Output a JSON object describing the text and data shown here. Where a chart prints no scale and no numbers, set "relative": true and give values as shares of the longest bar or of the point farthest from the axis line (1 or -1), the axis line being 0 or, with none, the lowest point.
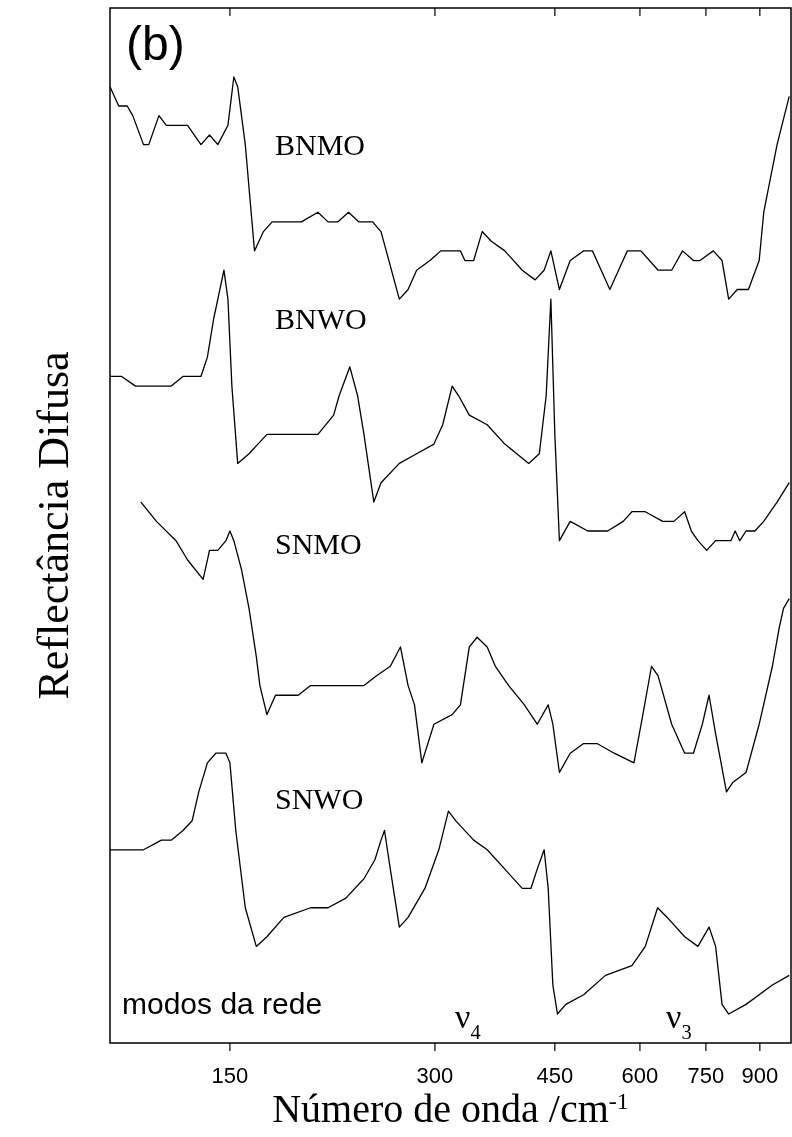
{
  "chart_data": {
    "type": "line",
    "relative": true,
    "log": "x",
    "xlabel": "Número de onda /cm$^{-1}$",
    "ylabel": "Reflectância Difusa",
    "xlim": [
      100,
      1000
    ],
    "xticks": [
      150,
      300,
      450,
      600,
      750,
      900
    ],
    "annotations": [
      "(b)",
      "modos da rede",
      "ν$_{4}$",
      "ν$_{3}$"
    ],
    "series": [
      {
        "name": "BNMO",
        "color": "#000000",
        "x": [
          100,
          103,
          106,
          108,
          112,
          114,
          118,
          121,
          125,
          130,
          136,
          140,
          144,
          149,
          152,
          154,
          158,
          163,
          168,
          173,
          180,
          191,
          202,
          209,
          216,
          224,
          232,
          243,
          250,
          266,
          274,
          282,
          295,
          306,
          318,
          327,
          332,
          342,
          352,
          363,
          380,
          403,
          421,
          434,
          444,
          457,
          474,
          496,
          511,
          542,
          575,
          602,
          638,
          668,
          693,
          719,
          735,
          769,
          792,
          810,
          834,
          866,
          898,
          912,
          954,
          994
        ],
        "values": [
          0.99,
          0.97,
          0.97,
          0.96,
          0.93,
          0.93,
          0.96,
          0.95,
          0.95,
          0.95,
          0.93,
          0.94,
          0.93,
          0.95,
          1.0,
          0.99,
          0.93,
          0.82,
          0.84,
          0.85,
          0.85,
          0.85,
          0.86,
          0.85,
          0.85,
          0.86,
          0.85,
          0.85,
          0.84,
          0.77,
          0.78,
          0.8,
          0.81,
          0.82,
          0.82,
          0.82,
          0.81,
          0.81,
          0.84,
          0.83,
          0.82,
          0.8,
          0.79,
          0.8,
          0.82,
          0.78,
          0.81,
          0.82,
          0.82,
          0.78,
          0.82,
          0.82,
          0.8,
          0.8,
          0.82,
          0.81,
          0.81,
          0.82,
          0.81,
          0.77,
          0.78,
          0.78,
          0.81,
          0.86,
          0.93,
          0.98
        ]
      },
      {
        "name": "BNWO",
        "color": "#000000",
        "x": [
          100,
          104,
          109,
          116,
          119,
          123,
          128,
          136,
          139,
          142,
          144,
          147,
          149,
          151,
          154,
          160,
          170,
          178,
          191,
          202,
          213,
          217,
          225,
          231,
          236,
          244,
          250,
          266,
          282,
          299,
          308,
          318,
          325,
          337,
          358,
          380,
          412,
          427,
          437,
          444,
          450,
          457,
          474,
          503,
          538,
          567,
          584,
          611,
          648,
          673,
          698,
          714,
          730,
          752,
          775,
          798,
          816,
          828,
          841,
          859,
          885,
          912,
          954,
          994
        ],
        "values": [
          0.69,
          0.69,
          0.68,
          0.68,
          0.68,
          0.68,
          0.69,
          0.69,
          0.71,
          0.75,
          0.77,
          0.8,
          0.77,
          0.68,
          0.6,
          0.61,
          0.63,
          0.63,
          0.63,
          0.63,
          0.65,
          0.67,
          0.7,
          0.67,
          0.63,
          0.56,
          0.58,
          0.6,
          0.61,
          0.62,
          0.64,
          0.68,
          0.67,
          0.65,
          0.64,
          0.62,
          0.6,
          0.61,
          0.67,
          0.77,
          0.63,
          0.52,
          0.54,
          0.53,
          0.53,
          0.54,
          0.55,
          0.55,
          0.54,
          0.54,
          0.55,
          0.53,
          0.52,
          0.51,
          0.52,
          0.52,
          0.52,
          0.53,
          0.52,
          0.53,
          0.53,
          0.54,
          0.56,
          0.58
        ]
      },
      {
        "name": "SNMO",
        "color": "#000000",
        "x": [
          111,
          117,
          125,
          130,
          137,
          140,
          144,
          148,
          150,
          152,
          156,
          160,
          164,
          166,
          170,
          175,
          180,
          189,
          197,
          209,
          222,
          236,
          246,
          258,
          267,
          274,
          280,
          287,
          299,
          318,
          327,
          337,
          346,
          358,
          368,
          385,
          406,
          424,
          440,
          447,
          457,
          474,
          496,
          519,
          550,
          588,
          606,
          624,
          638,
          668,
          698,
          719,
          741,
          758,
          775,
          804,
          822,
          859,
          898,
          939,
          961,
          975,
          994
        ],
        "values": [
          0.56,
          0.54,
          0.52,
          0.5,
          0.48,
          0.51,
          0.51,
          0.52,
          0.53,
          0.52,
          0.49,
          0.45,
          0.4,
          0.37,
          0.34,
          0.36,
          0.36,
          0.36,
          0.37,
          0.37,
          0.37,
          0.37,
          0.38,
          0.39,
          0.41,
          0.37,
          0.35,
          0.29,
          0.33,
          0.34,
          0.35,
          0.41,
          0.42,
          0.41,
          0.39,
          0.37,
          0.35,
          0.33,
          0.35,
          0.33,
          0.28,
          0.3,
          0.31,
          0.31,
          0.3,
          0.29,
          0.34,
          0.39,
          0.38,
          0.33,
          0.3,
          0.3,
          0.33,
          0.36,
          0.32,
          0.26,
          0.27,
          0.28,
          0.33,
          0.39,
          0.43,
          0.45,
          0.46
        ]
      },
      {
        "name": "SNWO",
        "color": "#000000",
        "x": [
          100,
          106,
          112,
          119,
          123,
          128,
          132,
          135,
          139,
          143,
          148,
          150,
          153,
          158,
          164,
          170,
          180,
          197,
          209,
          222,
          236,
          245,
          250,
          253,
          258,
          266,
          274,
          290,
          304,
          314,
          322,
          342,
          358,
          380,
          403,
          415,
          424,
          434,
          440,
          447,
          454,
          467,
          496,
          534,
          584,
          611,
          637,
          658,
          698,
          730,
          758,
          775,
          792,
          810,
          859,
          898,
          939,
          994
        ],
        "values": [
          0.2,
          0.2,
          0.2,
          0.21,
          0.21,
          0.22,
          0.23,
          0.26,
          0.29,
          0.3,
          0.3,
          0.29,
          0.22,
          0.14,
          0.1,
          0.11,
          0.13,
          0.14,
          0.14,
          0.15,
          0.17,
          0.19,
          0.21,
          0.22,
          0.18,
          0.12,
          0.13,
          0.16,
          0.2,
          0.24,
          0.23,
          0.21,
          0.2,
          0.18,
          0.16,
          0.16,
          0.18,
          0.2,
          0.16,
          0.06,
          0.03,
          0.04,
          0.05,
          0.07,
          0.08,
          0.1,
          0.14,
          0.13,
          0.11,
          0.1,
          0.12,
          0.1,
          0.04,
          0.03,
          0.04,
          0.05,
          0.06,
          0.07
        ]
      }
    ]
  }
}
